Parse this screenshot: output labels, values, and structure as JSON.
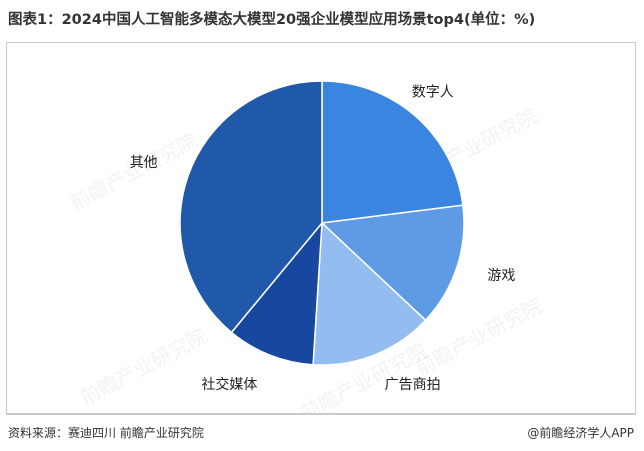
{
  "title": "图表1：2024中国人工智能多模态大模型20强企业模型应用场景top4(单位：%)",
  "source": "资料来源：赛迪四川 前瞻产业研究院",
  "credit": "@前瞻经济学人APP",
  "watermark": "前瞻产业研究院",
  "colors": {
    "数字人": "#3a85e0",
    "游戏": "#5f9be4",
    "广告商拍": "#93bdf0",
    "社交媒体": "#17479e",
    "其他": "#2159aa"
  },
  "chart_data": {
    "type": "pie",
    "title": "图表1：2024中国人工智能多模态大模型20强企业模型应用场景top4(单位：%)",
    "unit": "%",
    "start": "12 o'clock",
    "direction": "clockwise",
    "slices": [
      {
        "label": "数字人",
        "value": 23
      },
      {
        "label": "游戏",
        "value": 14
      },
      {
        "label": "广告商拍",
        "value": 14
      },
      {
        "label": "社交媒体",
        "value": 10
      },
      {
        "label": "其他",
        "value": 39
      }
    ]
  }
}
